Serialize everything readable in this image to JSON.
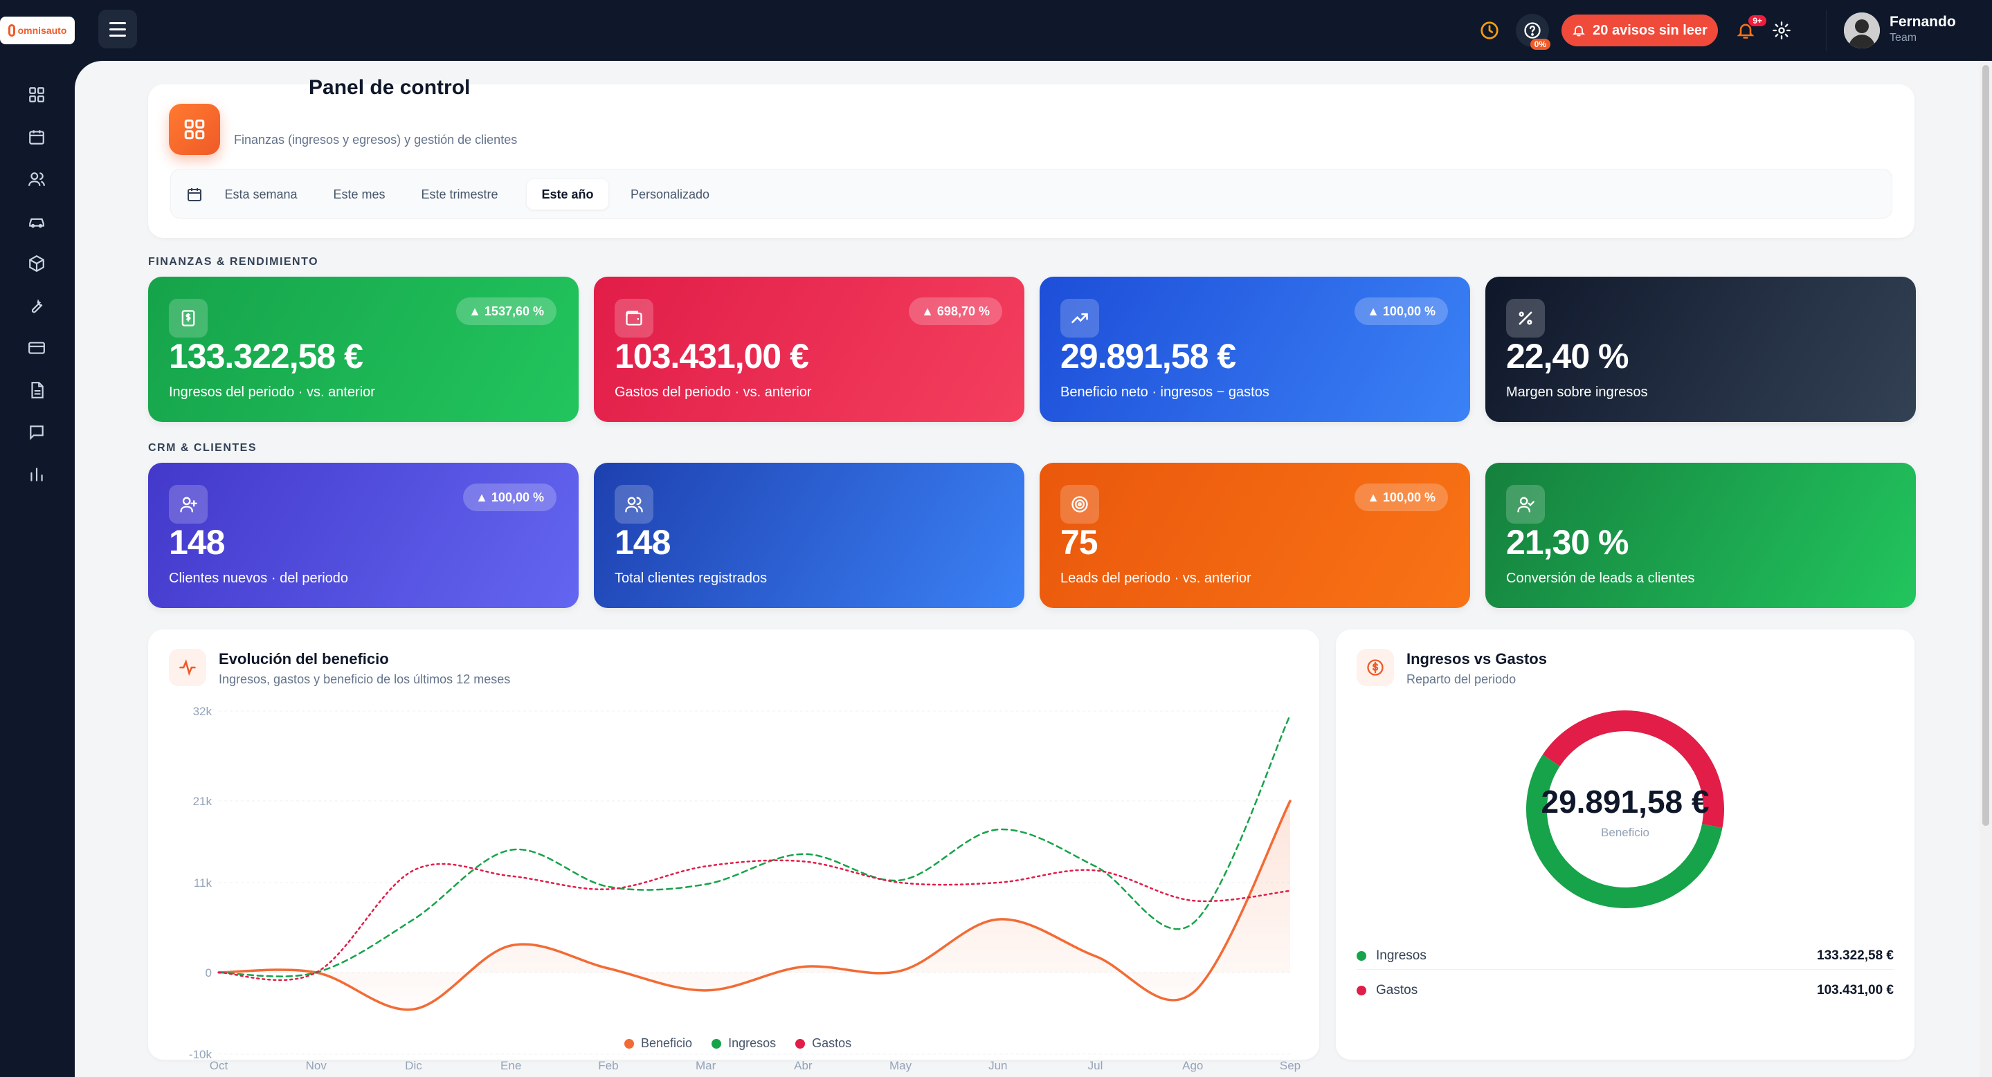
{
  "app": {
    "logo_text": "omnisauto"
  },
  "topbar": {
    "help_pct": "0%",
    "avisos_label": "20 avisos sin leer",
    "bell_badge": "9+",
    "user_name": "Fernando",
    "user_role": "Team"
  },
  "sidebar": {
    "items": [
      "grid-icon",
      "calendar-icon",
      "users-icon",
      "car-icon",
      "box-icon",
      "wrench-icon",
      "card-icon",
      "document-icon",
      "chat-icon",
      "chart-icon"
    ]
  },
  "header": {
    "title": "Panel de control",
    "subtitle": "Finanzas (ingresos y egresos) y gestión de clientes",
    "filters": [
      "Esta semana",
      "Este mes",
      "Este trimestre",
      "Este año",
      "Personalizado"
    ],
    "active_filter": "Este año"
  },
  "sections": {
    "finanzas": "FINANZAS & RENDIMIENTO",
    "crm": "CRM & CLIENTES"
  },
  "kpis": [
    {
      "value": "133.322,58 €",
      "label": "Ingresos del periodo · vs. anterior",
      "badge": "▲ 1537,60 %",
      "icon": "dollar-doc-icon",
      "color": "#16a34a"
    },
    {
      "value": "103.431,00 €",
      "label": "Gastos del periodo · vs. anterior",
      "badge": "▲ 698,70 %",
      "icon": "wallet-icon",
      "color": "#e11d48"
    },
    {
      "value": "29.891,58 €",
      "label": "Beneficio neto · ingresos − gastos",
      "badge": "▲ 100,00 %",
      "icon": "trend-up-icon",
      "color": "#2563eb"
    },
    {
      "value": "22,40 %",
      "label": "Margen sobre ingresos",
      "badge": "",
      "icon": "percent-icon",
      "color": "#0f172a"
    },
    {
      "value": "148",
      "label": "Clientes nuevos · del periodo",
      "badge": "▲ 100,00 %",
      "icon": "user-plus-icon",
      "color": "#4f46e5"
    },
    {
      "value": "148",
      "label": "Total clientes registrados",
      "badge": "",
      "icon": "users-icon",
      "color": "#1d4ed8"
    },
    {
      "value": "75",
      "label": "Leads del periodo · vs. anterior",
      "badge": "▲ 100,00 %",
      "icon": "target-icon",
      "color": "#f97316"
    },
    {
      "value": "21,30 %",
      "label": "Conversión de leads a clientes",
      "badge": "",
      "icon": "user-check-icon",
      "color": "#16a34a"
    }
  ],
  "line_panel": {
    "title": "Evolución del beneficio",
    "subtitle": "Ingresos, gastos y beneficio de los últimos 12 meses"
  },
  "donut_panel": {
    "title": "Ingresos vs Gastos",
    "subtitle": "Reparto del periodo",
    "center_value": "29.891,58 €",
    "center_label": "Beneficio",
    "rows": [
      {
        "label": "Ingresos",
        "value": "133.322,58 €",
        "color": "#16a34a"
      },
      {
        "label": "Gastos",
        "value": "103.431,00 €",
        "color": "#e11d48"
      }
    ]
  },
  "chart_data": [
    {
      "type": "line",
      "x": [
        "Oct",
        "Nov",
        "Dic",
        "Ene",
        "Feb",
        "Mar",
        "Abr",
        "May",
        "Jun",
        "Jul",
        "Ago",
        "Sep"
      ],
      "yticks": [
        "32k",
        "21k",
        "11k",
        "0",
        "-10k"
      ],
      "ylim": [
        -10000,
        32000
      ],
      "series": [
        {
          "name": "Beneficio",
          "color": "#f26b35",
          "values": [
            0,
            0,
            -4500,
            3300,
            500,
            -2200,
            700,
            200,
            6500,
            2000,
            -2500,
            21000
          ]
        },
        {
          "name": "Ingresos",
          "color": "#16a34a",
          "values": [
            0,
            0,
            6500,
            15000,
            10500,
            10800,
            14500,
            11300,
            17500,
            13000,
            6000,
            31500
          ]
        },
        {
          "name": "Gastos",
          "color": "#e11d48",
          "values": [
            0,
            0,
            12500,
            11800,
            10200,
            13000,
            13600,
            11000,
            11000,
            12500,
            8800,
            10000
          ]
        }
      ],
      "legend": "bottom-center",
      "grid": true
    },
    {
      "type": "pie",
      "categories": [
        "Ingresos",
        "Gastos"
      ],
      "values": [
        133322.58,
        103431.0
      ],
      "colors": [
        "#16a34a",
        "#e11d48"
      ]
    }
  ]
}
